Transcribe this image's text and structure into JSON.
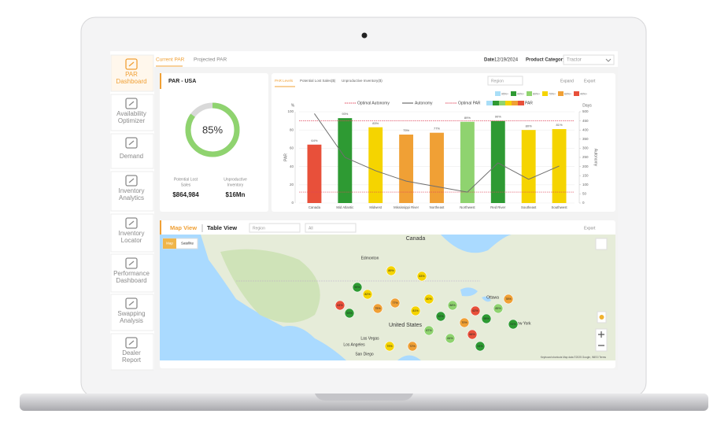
{
  "sidebar": [
    {
      "lines": [
        "PAR",
        "Dashboard"
      ]
    },
    {
      "lines": [
        "Availability",
        "Optimizer"
      ]
    },
    {
      "lines": [
        "Demand"
      ]
    },
    {
      "lines": [
        "Inventory",
        "Analytics"
      ]
    },
    {
      "lines": [
        "Inventory",
        "Locator"
      ]
    },
    {
      "lines": [
        "Performance",
        "Dashboard"
      ]
    },
    {
      "lines": [
        "Swapping",
        "Analysis"
      ]
    },
    {
      "lines": [
        "Dealer",
        "Report"
      ]
    }
  ],
  "top_tabs": [
    "Current PAR",
    "Projected PAR"
  ],
  "date_label": "Date",
  "date": "12/19/2024",
  "product_category_label": "Product Category",
  "product_category": "Tractor",
  "summary": {
    "title": "PAR - USA",
    "gauge": {
      "value": 85,
      "label": "85%"
    },
    "lost_sales_label": [
      "Potential Lost",
      "Sales"
    ],
    "lost_sales": "$864,984",
    "unproductive_label": [
      "Unproductive",
      "Inventory"
    ],
    "unproductive": "$16Mn"
  },
  "chart_tabs": [
    "PAR Levels",
    "Potential Lost Sales($)",
    "Unproductive Inventory($)"
  ],
  "chart_region": "Region",
  "expand": "Expand",
  "export": "Export",
  "chart": {
    "type": "bar",
    "categories": [
      "Canada",
      "Mid Atlantic",
      "Midwest",
      "Mississippi River",
      "Northeast",
      "Northwest",
      "Red River",
      "Southeast",
      "Southwest"
    ],
    "values": [
      64,
      93,
      83,
      75,
      77,
      89,
      90,
      80,
      81
    ],
    "value_labels": [
      "64%",
      "93%",
      "83%",
      "75%",
      "77%",
      "89%",
      "90%",
      "80%",
      "81%"
    ],
    "colors": [
      "#e8503a",
      "#2e9a33",
      "#f5d400",
      "#f0a035",
      "#f0a035",
      "#8fd36f",
      "#2e9a33",
      "#f5d400",
      "#f5d400"
    ],
    "ylabel": "PAR",
    "y_unit": "%",
    "ylim": [
      0,
      100
    ],
    "yticks": [
      0,
      20,
      40,
      60,
      80,
      100
    ],
    "y2label": "Autonomy",
    "y2_unit": "Days",
    "y2lim": [
      0,
      500
    ],
    "y2ticks": [
      0,
      50,
      100,
      150,
      200,
      250,
      300,
      350,
      400,
      450,
      500
    ],
    "autonomy": {
      "name": "Autonomy",
      "color": "#6f6f6f",
      "axis": "y2",
      "values": [
        490,
        250,
        177,
        120,
        90,
        60,
        220,
        130,
        203
      ]
    },
    "optimal_autonomy": {
      "name": "Optimal Autonomy",
      "color": "#e0455a",
      "axis": "y2",
      "value": 60
    },
    "optimal_par": {
      "name": "Optimal PAR",
      "color": "#e0455a",
      "value": 90
    },
    "par_legend": {
      "name": "PAR",
      "colors": [
        "#a9def7",
        "#2e9a33",
        "#8fd36f",
        "#f5d400",
        "#f0a035",
        "#e8503a"
      ]
    },
    "thresholds": [
      {
        "label": "95%+",
        "color": "#a9def7"
      },
      {
        "label": "90%+",
        "color": "#2e9a33"
      },
      {
        "label": "80%+",
        "color": "#8fd36f"
      },
      {
        "label": "70%+",
        "color": "#f5d400"
      },
      {
        "label": "60%+",
        "color": "#f0a035"
      },
      {
        "label": "40%+",
        "color": "#e8503a"
      }
    ]
  },
  "map": {
    "tabs": [
      "Map View",
      "Table View"
    ],
    "region": "Region",
    "filter": "All",
    "export": "Export",
    "buttons": [
      "Map",
      "Satellite"
    ],
    "places": [
      "Canada",
      "Edmonton",
      "United States",
      "Las Vegas",
      "Los Angeles",
      "San Diego",
      "Ottawa",
      "New York"
    ],
    "markers": [
      {
        "text": "89%",
        "color": "#f5d400"
      },
      {
        "text": "83%",
        "color": "#f5d400"
      },
      {
        "text": "90%",
        "color": "#2e9a33"
      },
      {
        "text": "82%",
        "color": "#f5d400"
      },
      {
        "text": "64%",
        "color": "#e8503a"
      },
      {
        "text": "93%",
        "color": "#2e9a33"
      },
      {
        "text": "75%",
        "color": "#f0a035"
      },
      {
        "text": "77%",
        "color": "#f0a035"
      },
      {
        "text": "81%",
        "color": "#f5d400"
      },
      {
        "text": "80%",
        "color": "#f5d400"
      },
      {
        "text": "92%",
        "color": "#2e9a33"
      },
      {
        "text": "88%",
        "color": "#8fd36f"
      },
      {
        "text": "70%",
        "color": "#f0a035"
      },
      {
        "text": "62%",
        "color": "#e8503a"
      },
      {
        "text": "95%",
        "color": "#2e9a33"
      },
      {
        "text": "85%",
        "color": "#8fd36f"
      },
      {
        "text": "78%",
        "color": "#f0a035"
      },
      {
        "text": "91%",
        "color": "#2e9a33"
      },
      {
        "text": "66%",
        "color": "#e8503a"
      },
      {
        "text": "84%",
        "color": "#8fd36f"
      },
      {
        "text": "87%",
        "color": "#8fd36f"
      },
      {
        "text": "72%",
        "color": "#f0a035"
      },
      {
        "text": "94%",
        "color": "#2e9a33"
      },
      {
        "text": "79%",
        "color": "#f5d400"
      }
    ],
    "attribution": "Keyboard shortcuts   Map data ©2025 Google, INEGI   Terms"
  }
}
